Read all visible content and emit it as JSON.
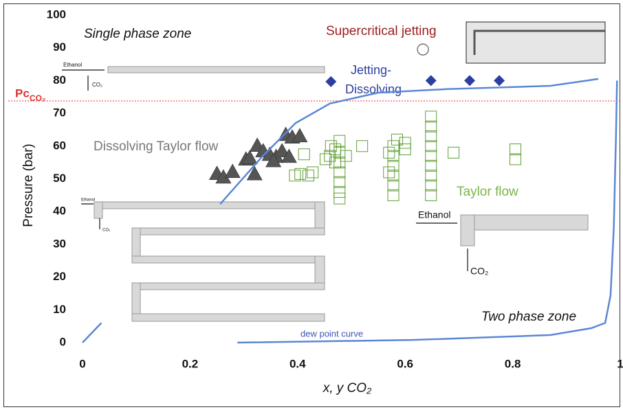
{
  "chart_data": {
    "type": "scatter",
    "ylabel": "Pressure (bar)",
    "xlabel": "x, y CO₂",
    "xlim": [
      0,
      1
    ],
    "xticks": [
      0,
      0.2,
      0.4,
      0.6,
      0.8,
      1
    ],
    "ylim": [
      0,
      100
    ],
    "yticks": [
      0,
      10,
      20,
      30,
      40,
      50,
      60,
      70,
      80,
      90,
      100
    ],
    "grid": false,
    "annotations": [
      "Single phase zone",
      "Two phase zone"
    ],
    "reference_line": {
      "y": 73.8,
      "label": "Pc",
      "label_sub": "CO₂",
      "color": "#e03030"
    },
    "insets": [
      "Ethanol",
      "CO₂",
      "Ethanol",
      "CO₂",
      "Ethanol",
      "CO₂"
    ],
    "series": [
      {
        "label": [
          "Supercritical jetting"
        ],
        "marker": "circle-open",
        "color": "#9b1b1b",
        "marker_color": "#666666",
        "x": [
          0.633
        ],
        "values": [
          89.5
        ]
      },
      {
        "label": [
          "Jetting-",
          "Dissolving"
        ],
        "marker": "diamond",
        "color": "#2b3f9e",
        "x": [
          0.462,
          0.648,
          0.72,
          0.775
        ],
        "values": [
          79.7,
          80,
          80,
          80
        ]
      },
      {
        "label": [
          "Dissolving Taylor flow"
        ],
        "marker": "triangle",
        "color": "#777777",
        "marker_color": "#555555",
        "x": [
          0.25,
          0.262,
          0.279,
          0.304,
          0.311,
          0.325,
          0.336,
          0.348,
          0.36,
          0.371,
          0.378,
          0.39,
          0.404,
          0.384,
          0.32,
          0.355
        ],
        "values": [
          51.6,
          50.5,
          52.2,
          56,
          56.4,
          60.2,
          58.5,
          57.4,
          56.8,
          58.5,
          63.5,
          62.7,
          63.1,
          56.8,
          51.5,
          55.5
        ]
      },
      {
        "label": [
          "Taylor flow"
        ],
        "marker": "square-open",
        "color": "#7ab648",
        "marker_color": "#5e9e34",
        "x": [
          0.412,
          0.42,
          0.405,
          0.428,
          0.395,
          0.452,
          0.46,
          0.462,
          0.478,
          0.478,
          0.478,
          0.478,
          0.478,
          0.478,
          0.478,
          0.47,
          0.47,
          0.49,
          0.52,
          0.578,
          0.578,
          0.578,
          0.578,
          0.578,
          0.578,
          0.57,
          0.57,
          0.585,
          0.6,
          0.6,
          0.648,
          0.648,
          0.648,
          0.648,
          0.648,
          0.648,
          0.648,
          0.648,
          0.648,
          0.69,
          0.805,
          0.805
        ],
        "values": [
          57.5,
          51,
          51.5,
          52,
          51,
          56,
          57,
          60,
          61.6,
          58,
          55,
          52,
          49,
          46,
          44,
          55,
          59,
          57,
          60,
          60,
          57,
          54,
          51,
          48,
          45,
          58,
          52,
          62,
          61,
          59,
          69,
          66,
          63,
          60,
          57,
          54,
          51,
          48,
          45,
          58,
          59,
          56
        ]
      },
      {
        "label": [
          "dew point curve"
        ],
        "marker": "line",
        "color": "#5b86d6",
        "label_color": "#3a55b0",
        "x": [
          0,
          0.035,
          null,
          0.256,
          0.332,
          0.396,
          0.46,
          0.55,
          0.678,
          0.87,
          0.959,
          null,
          0.288,
          0.614,
          0.87,
          0.946,
          0.972,
          0.982,
          0.988,
          0.992,
          0.994
        ],
        "values": [
          0,
          6,
          null,
          42.3,
          56.4,
          67,
          73,
          76.3,
          77.4,
          78.4,
          80.5,
          null,
          0,
          0.8,
          2.3,
          4.4,
          6,
          14.5,
          35,
          62.7,
          80
        ]
      }
    ]
  }
}
